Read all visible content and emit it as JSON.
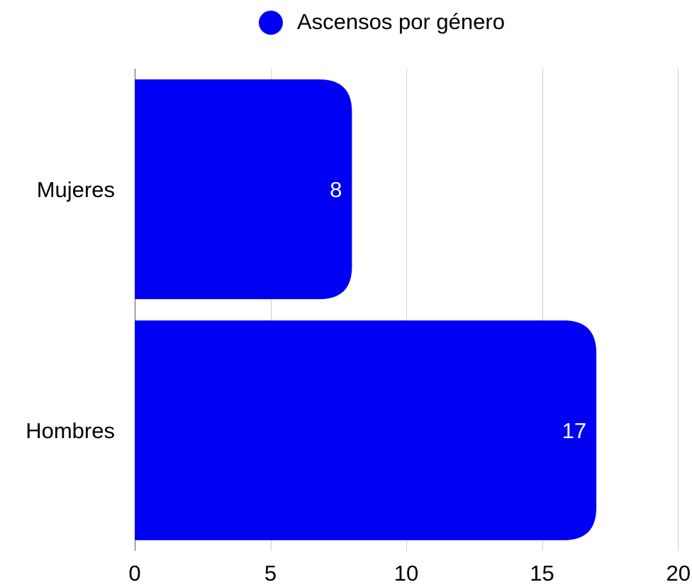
{
  "legend": {
    "label": "Ascensos por género",
    "color": "#0000f5"
  },
  "chart_data": {
    "type": "bar",
    "orientation": "horizontal",
    "categories": [
      "Mujeres",
      "Hombres"
    ],
    "series": [
      {
        "name": "Ascensos por género",
        "values": [
          8,
          17
        ],
        "color": "#0000f5"
      }
    ],
    "xlim": [
      0,
      20
    ],
    "xticks": [
      0,
      5,
      10,
      15,
      20
    ],
    "data_labels": [
      "8",
      "17"
    ],
    "grid": "vertical",
    "legend_position": "top",
    "bar_corners": "rounded"
  }
}
